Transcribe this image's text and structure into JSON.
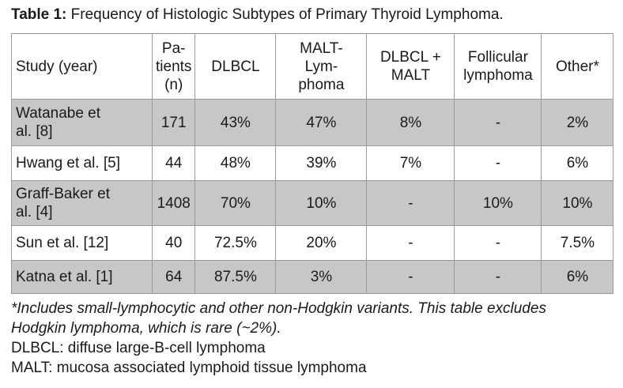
{
  "caption": {
    "label": "Table 1:",
    "text": " Frequency of Histologic Subtypes of Primary Thyroid Lymphoma."
  },
  "table": {
    "headers": [
      [
        "Study (year)"
      ],
      [
        "Pa-",
        "tients",
        "(n)"
      ],
      [
        "DLBCL"
      ],
      [
        "MALT-",
        "Lym-",
        "phoma"
      ],
      [
        "DLBCL +",
        "MALT"
      ],
      [
        "Follicular",
        "lymphoma"
      ],
      [
        "Other*"
      ]
    ],
    "rows": [
      {
        "study": [
          "Watanabe et",
          "al. [8]"
        ],
        "patients": "171",
        "dlbcl": "43%",
        "malt": "47%",
        "dlbcl_malt": "8%",
        "follicular": "-",
        "other": "2%"
      },
      {
        "study": [
          "Hwang et al. [5]"
        ],
        "patients": "44",
        "dlbcl": "48%",
        "malt": "39%",
        "dlbcl_malt": "7%",
        "follicular": "-",
        "other": "6%"
      },
      {
        "study": [
          "Graff-Baker et",
          "al. [4]"
        ],
        "patients": "1408",
        "dlbcl": "70%",
        "malt": "10%",
        "dlbcl_malt": "-",
        "follicular": "10%",
        "other": "10%"
      },
      {
        "study": [
          "Sun et al. [12]"
        ],
        "patients": "40",
        "dlbcl": "72.5%",
        "malt": "20%",
        "dlbcl_malt": "-",
        "follicular": "-",
        "other": "7.5%"
      },
      {
        "study": [
          "Katna et al. [1]"
        ],
        "patients": "64",
        "dlbcl": "87.5%",
        "malt": "3%",
        "dlbcl_malt": "-",
        "follicular": "-",
        "other": "6%"
      }
    ]
  },
  "notes": {
    "footnote_1": "*Includes small-lymphocytic and other non-Hodgkin variants. This table excludes",
    "footnote_2": "Hodgkin lymphoma, which is rare (~2%).",
    "abbr_dlbcl": "DLBCL: diffuse large-B-cell lymphoma",
    "abbr_malt": "MALT: mucosa associated lymphoid tissue lymphoma"
  },
  "colors": {
    "shaded_row": "#c7c7c7",
    "border": "#9a9a9a"
  }
}
